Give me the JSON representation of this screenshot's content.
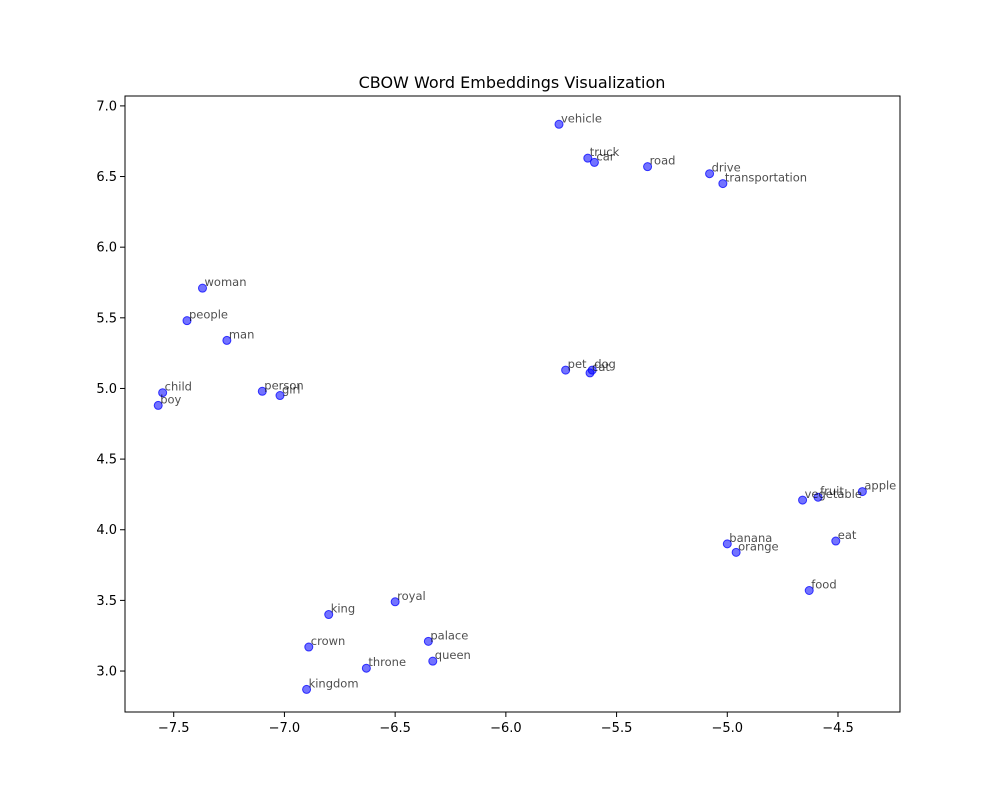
{
  "chart_data": {
    "type": "scatter",
    "title": "CBOW Word Embeddings Visualization",
    "xlabel": "",
    "ylabel": "",
    "xlim": [
      -7.72,
      -4.22
    ],
    "ylim": [
      2.71,
      7.07
    ],
    "xticks": [
      -7.5,
      -7.0,
      -6.5,
      -6.0,
      -5.5,
      -5.0,
      -4.5
    ],
    "xtick_labels": [
      "−7.5",
      "−7.0",
      "−6.5",
      "−6.0",
      "−5.5",
      "−5.0",
      "−4.5"
    ],
    "yticks": [
      3.0,
      3.5,
      4.0,
      4.5,
      5.0,
      5.5,
      6.0,
      6.5,
      7.0
    ],
    "ytick_labels": [
      "3.0",
      "3.5",
      "4.0",
      "4.5",
      "5.0",
      "5.5",
      "6.0",
      "6.5",
      "7.0"
    ],
    "grid": false,
    "point_color": "#0000ff",
    "points": [
      {
        "label": "vehicle",
        "x": -5.76,
        "y": 6.87
      },
      {
        "label": "truck",
        "x": -5.63,
        "y": 6.63
      },
      {
        "label": "car",
        "x": -5.6,
        "y": 6.6
      },
      {
        "label": "road",
        "x": -5.36,
        "y": 6.57
      },
      {
        "label": "drive",
        "x": -5.08,
        "y": 6.52
      },
      {
        "label": "transportation",
        "x": -5.02,
        "y": 6.45
      },
      {
        "label": "woman",
        "x": -7.37,
        "y": 5.71
      },
      {
        "label": "people",
        "x": -7.44,
        "y": 5.48
      },
      {
        "label": "man",
        "x": -7.26,
        "y": 5.34
      },
      {
        "label": "child",
        "x": -7.55,
        "y": 4.97
      },
      {
        "label": "boy",
        "x": -7.57,
        "y": 4.88
      },
      {
        "label": "person",
        "x": -7.1,
        "y": 4.98
      },
      {
        "label": "girl",
        "x": -7.02,
        "y": 4.95
      },
      {
        "label": "pet",
        "x": -5.73,
        "y": 5.13
      },
      {
        "label": "dog",
        "x": -5.61,
        "y": 5.13
      },
      {
        "label": "cat",
        "x": -5.62,
        "y": 5.11
      },
      {
        "label": "apple",
        "x": -4.39,
        "y": 4.27
      },
      {
        "label": "fruit",
        "x": -4.59,
        "y": 4.23
      },
      {
        "label": "vegetable",
        "x": -4.66,
        "y": 4.21
      },
      {
        "label": "banana",
        "x": -5.0,
        "y": 3.9
      },
      {
        "label": "orange",
        "x": -4.96,
        "y": 3.84
      },
      {
        "label": "eat",
        "x": -4.51,
        "y": 3.92
      },
      {
        "label": "food",
        "x": -4.63,
        "y": 3.57
      },
      {
        "label": "royal",
        "x": -6.5,
        "y": 3.49
      },
      {
        "label": "king",
        "x": -6.8,
        "y": 3.4
      },
      {
        "label": "crown",
        "x": -6.89,
        "y": 3.17
      },
      {
        "label": "palace",
        "x": -6.35,
        "y": 3.21
      },
      {
        "label": "queen",
        "x": -6.33,
        "y": 3.07
      },
      {
        "label": "throne",
        "x": -6.63,
        "y": 3.02
      },
      {
        "label": "kingdom",
        "x": -6.9,
        "y": 2.87
      }
    ]
  }
}
